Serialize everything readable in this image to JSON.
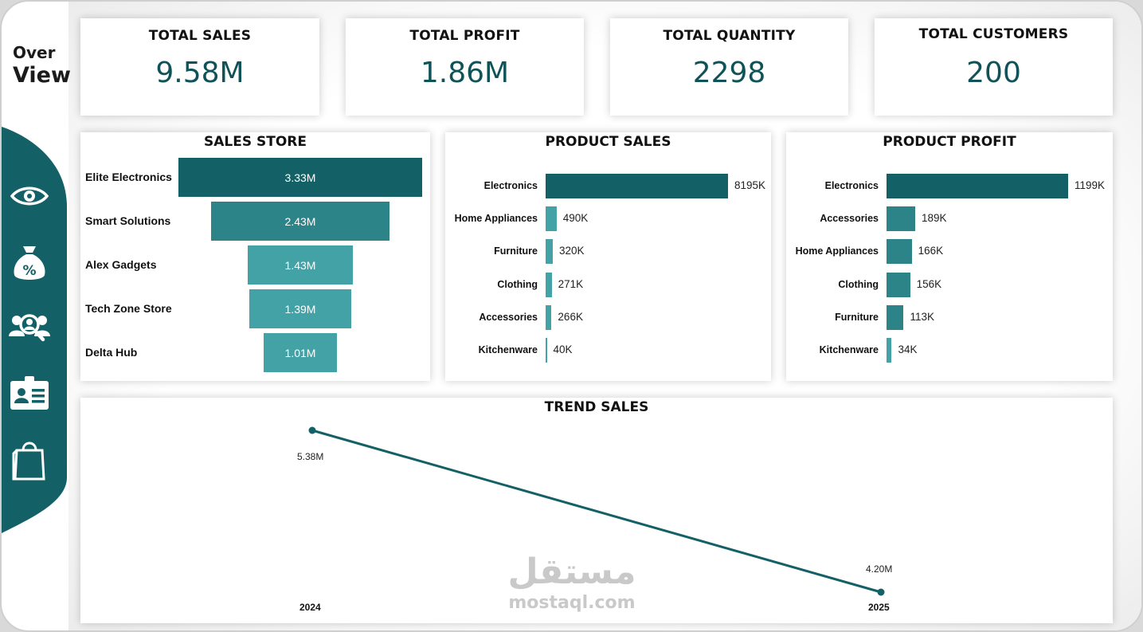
{
  "page": {
    "title_line1": "Over",
    "title_line2": "View",
    "colors": {
      "dark": "#136166",
      "mid": "#2c8489",
      "light": "#42a2a6",
      "text_value": "#0f5257",
      "sidebar": "#136166"
    }
  },
  "sidebar": {
    "items": [
      {
        "icon": "eye-icon"
      },
      {
        "icon": "money-bag-percent-icon"
      },
      {
        "icon": "customers-search-icon"
      },
      {
        "icon": "id-card-icon"
      },
      {
        "icon": "shopping-bag-icon"
      }
    ]
  },
  "kpis": [
    {
      "title": "TOTAL SALES",
      "value": "9.58M"
    },
    {
      "title": "TOTAL PROFIT",
      "value": "1.86M"
    },
    {
      "title": "TOTAL QUANTITY",
      "value": "2298"
    },
    {
      "title": "TOTAL CUSTOMERS",
      "value": "200"
    }
  ],
  "sales_store": {
    "title": "SALES STORE",
    "chart_data": {
      "type": "bar",
      "categories": [
        "Elite Electronics",
        "Smart Solutions",
        "Alex Gadgets",
        "Tech Zone Store",
        "Delta Hub"
      ],
      "values": [
        3.33,
        2.43,
        1.43,
        1.39,
        1.01
      ],
      "labels": [
        "3.33M",
        "2.43M",
        "1.43M",
        "1.39M",
        "1.01M"
      ]
    }
  },
  "product_sales": {
    "title": "PRODUCT SALES",
    "chart_data": {
      "type": "bar",
      "categories": [
        "Electronics",
        "Home Appliances",
        "Furniture",
        "Clothing",
        "Accessories",
        "Kitchenware"
      ],
      "values": [
        8195,
        490,
        320,
        271,
        266,
        40
      ],
      "labels": [
        "8195K",
        "490K",
        "320K",
        "271K",
        "266K",
        "40K"
      ]
    }
  },
  "product_profit": {
    "title": "PRODUCT PROFIT",
    "chart_data": {
      "type": "bar",
      "categories": [
        "Electronics",
        "Accessories",
        "Home Appliances",
        "Clothing",
        "Furniture",
        "Kitchenware"
      ],
      "values": [
        1199,
        189,
        166,
        156,
        113,
        34
      ],
      "labels": [
        "1199K",
        "189K",
        "166K",
        "156K",
        "113K",
        "34K"
      ]
    }
  },
  "trend_sales": {
    "title": "TREND SALES",
    "chart_data": {
      "type": "line",
      "x": [
        "2024",
        "2025"
      ],
      "values": [
        5.38,
        4.2
      ],
      "labels": [
        "5.38M",
        "4.20M"
      ]
    }
  },
  "watermark": {
    "arabic": "مستقل",
    "latin": "mostaql.com"
  }
}
